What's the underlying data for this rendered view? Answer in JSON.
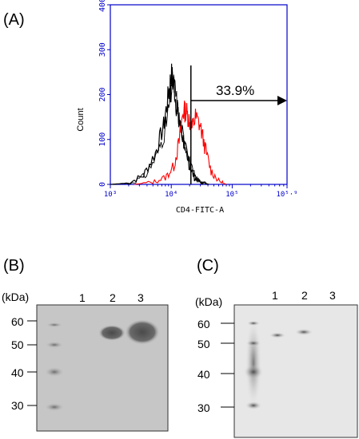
{
  "panels": {
    "A": {
      "label": "(A)",
      "ylabel": "Count",
      "xlabel": "CD4-FITC-A",
      "yticks": [
        "0",
        "100",
        "200",
        "300",
        "400"
      ],
      "xticks": [
        "10³",
        "10⁴",
        "10⁵",
        "10⁵·⁹"
      ],
      "gate_percent": "33.9%",
      "colors": {
        "axis": "#0000cc",
        "control": "#000000",
        "sample": "#ff0000"
      }
    },
    "B": {
      "label": "(B)",
      "unit": "(kDa)",
      "markers": [
        "60",
        "50",
        "40",
        "30"
      ],
      "lanes": [
        "1",
        "2",
        "3"
      ]
    },
    "C": {
      "label": "(C)",
      "unit": "(kDa)",
      "markers": [
        "60",
        "50",
        "40",
        "30"
      ],
      "lanes": [
        "1",
        "2",
        "3"
      ]
    }
  },
  "chart_data": {
    "type": "line",
    "x_scale": "log",
    "xlim": [
      1000,
      794328
    ],
    "ylim": [
      0,
      400
    ],
    "ylabel": "Count",
    "xlabel": "CD4-FITC-A",
    "gate": {
      "start": 21000,
      "label": "33.9%"
    },
    "series": [
      {
        "color": "#000000",
        "x": [
          1000,
          2000,
          3500,
          5500,
          7500,
          9000,
          10000,
          11000,
          12500,
          14500,
          17000,
          20000,
          24000,
          30000,
          40000
        ],
        "y": [
          0,
          3,
          20,
          70,
          130,
          200,
          245,
          225,
          160,
          120,
          80,
          40,
          15,
          5,
          0
        ]
      },
      {
        "color": "#ff0000",
        "x": [
          2500,
          5000,
          8000,
          11000,
          13500,
          15500,
          17500,
          19500,
          22000,
          25000,
          30000,
          36000,
          45000,
          60000,
          80000
        ],
        "y": [
          0,
          5,
          15,
          40,
          95,
          160,
          165,
          145,
          125,
          150,
          130,
          80,
          30,
          8,
          0
        ]
      }
    ]
  }
}
